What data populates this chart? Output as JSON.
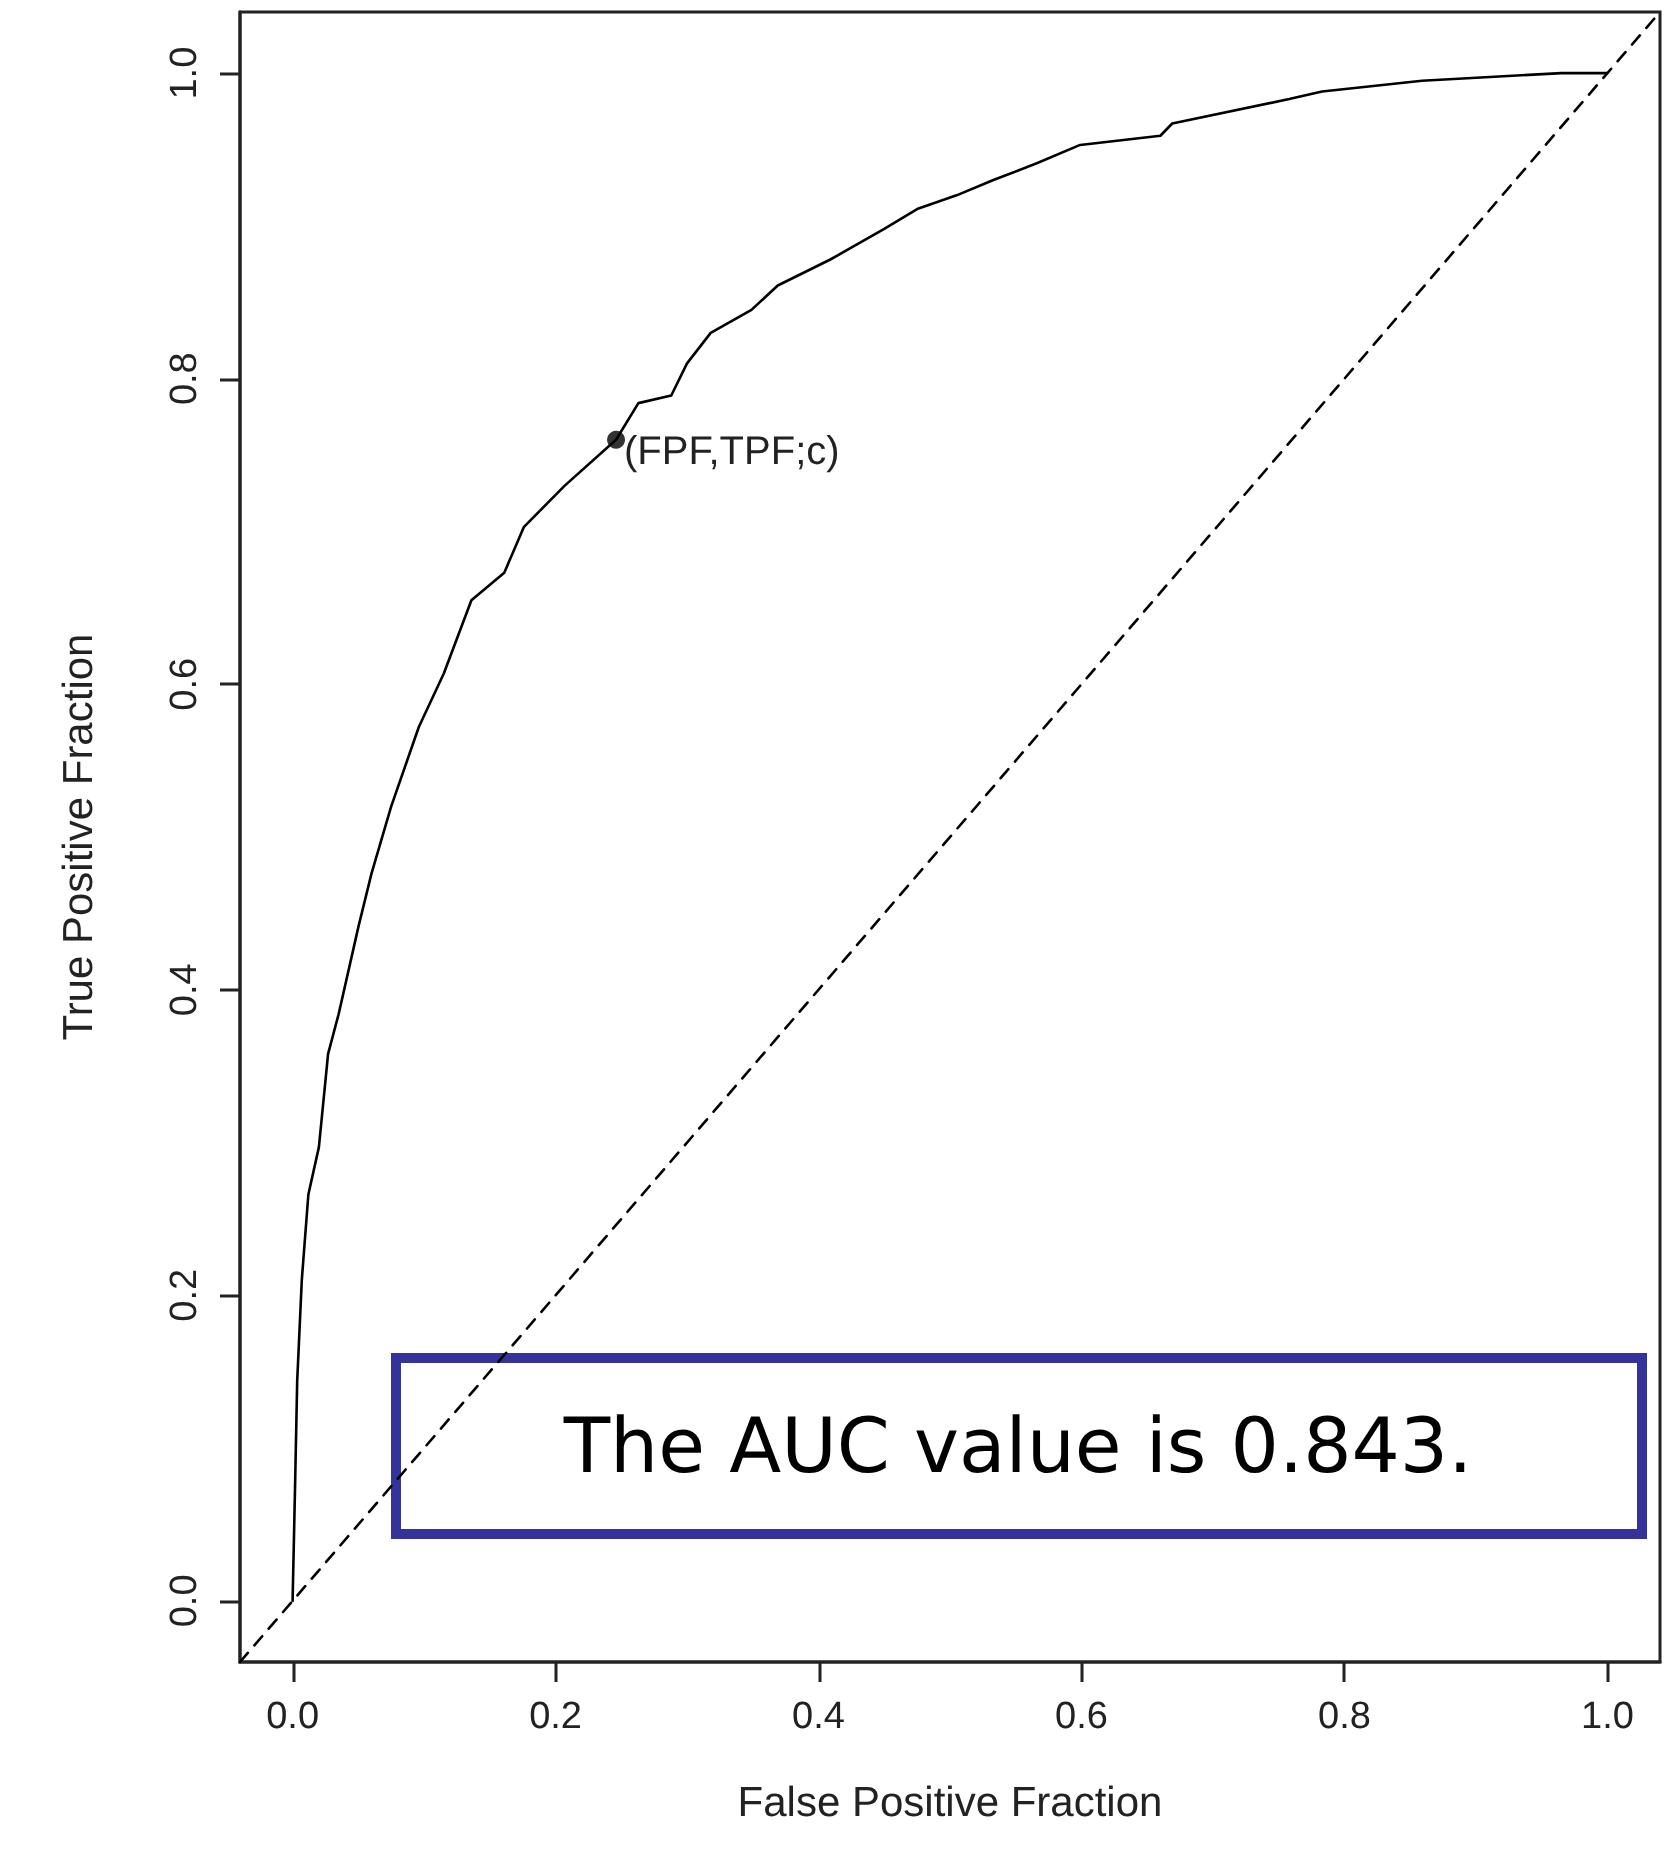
{
  "chart_data": {
    "type": "line",
    "xlabel": "False Positive Fraction",
    "ylabel": "True Positive Fraction",
    "xlim": [
      -0.04,
      1.04
    ],
    "ylim": [
      -0.04,
      1.04
    ],
    "xticks": [
      {
        "value": 0,
        "label": "0.0"
      },
      {
        "value": 0.2,
        "label": "0.2"
      },
      {
        "value": 0.4,
        "label": "0.4"
      },
      {
        "value": 0.6,
        "label": "0.6"
      },
      {
        "value": 0.8,
        "label": "0.8"
      },
      {
        "value": 1,
        "label": "1.0"
      }
    ],
    "yticks": [
      {
        "value": 0,
        "label": "0.0"
      },
      {
        "value": 0.2,
        "label": "0.2"
      },
      {
        "value": 0.4,
        "label": "0.4"
      },
      {
        "value": 0.6,
        "label": "0.6"
      },
      {
        "value": 0.8,
        "label": "0.8"
      },
      {
        "value": 1,
        "label": "1.0"
      }
    ],
    "grid": false,
    "marker": "none",
    "series": [
      {
        "type": "line",
        "color": "#000000",
        "line_style": "solid",
        "x": [
          0,
          0.002,
          0.0035,
          0.007,
          0.012,
          0.02,
          0.027,
          0.035,
          0.05,
          0.06,
          0.075,
          0.096,
          0.115,
          0.136,
          0.161,
          0.176,
          0.207,
          0.246,
          0.263,
          0.288,
          0.3,
          0.318,
          0.349,
          0.369,
          0.409,
          0.45,
          0.475,
          0.505,
          0.533,
          0.566,
          0.599,
          0.66,
          0.669,
          0.758,
          0.783,
          0.859,
          0.965,
          1.0
        ],
        "values": [
          0,
          0.08,
          0.144,
          0.21,
          0.266,
          0.297,
          0.358,
          0.384,
          0.441,
          0.476,
          0.52,
          0.572,
          0.607,
          0.655,
          0.673,
          0.703,
          0.73,
          0.76,
          0.784,
          0.789,
          0.81,
          0.83,
          0.845,
          0.861,
          0.878,
          0.898,
          0.911,
          0.92,
          0.93,
          0.941,
          0.953,
          0.959,
          0.967,
          0.983,
          0.988,
          0.995,
          1.0,
          1.0
        ]
      },
      {
        "type": "line",
        "color": "#000000",
        "line_style": "dashed",
        "x": [
          -0.04,
          1.04
        ],
        "values": [
          -0.04,
          1.04
        ]
      },
      {
        "type": "scatter",
        "color": "#000000",
        "marker": "circle",
        "x": [
          0.246
        ],
        "values": [
          0.76
        ]
      }
    ],
    "annotations": [
      {
        "text": "(FPF,TPF;c)",
        "x": 0.246,
        "y": 0.76
      },
      "The AUC value is 0.843."
    ]
  }
}
